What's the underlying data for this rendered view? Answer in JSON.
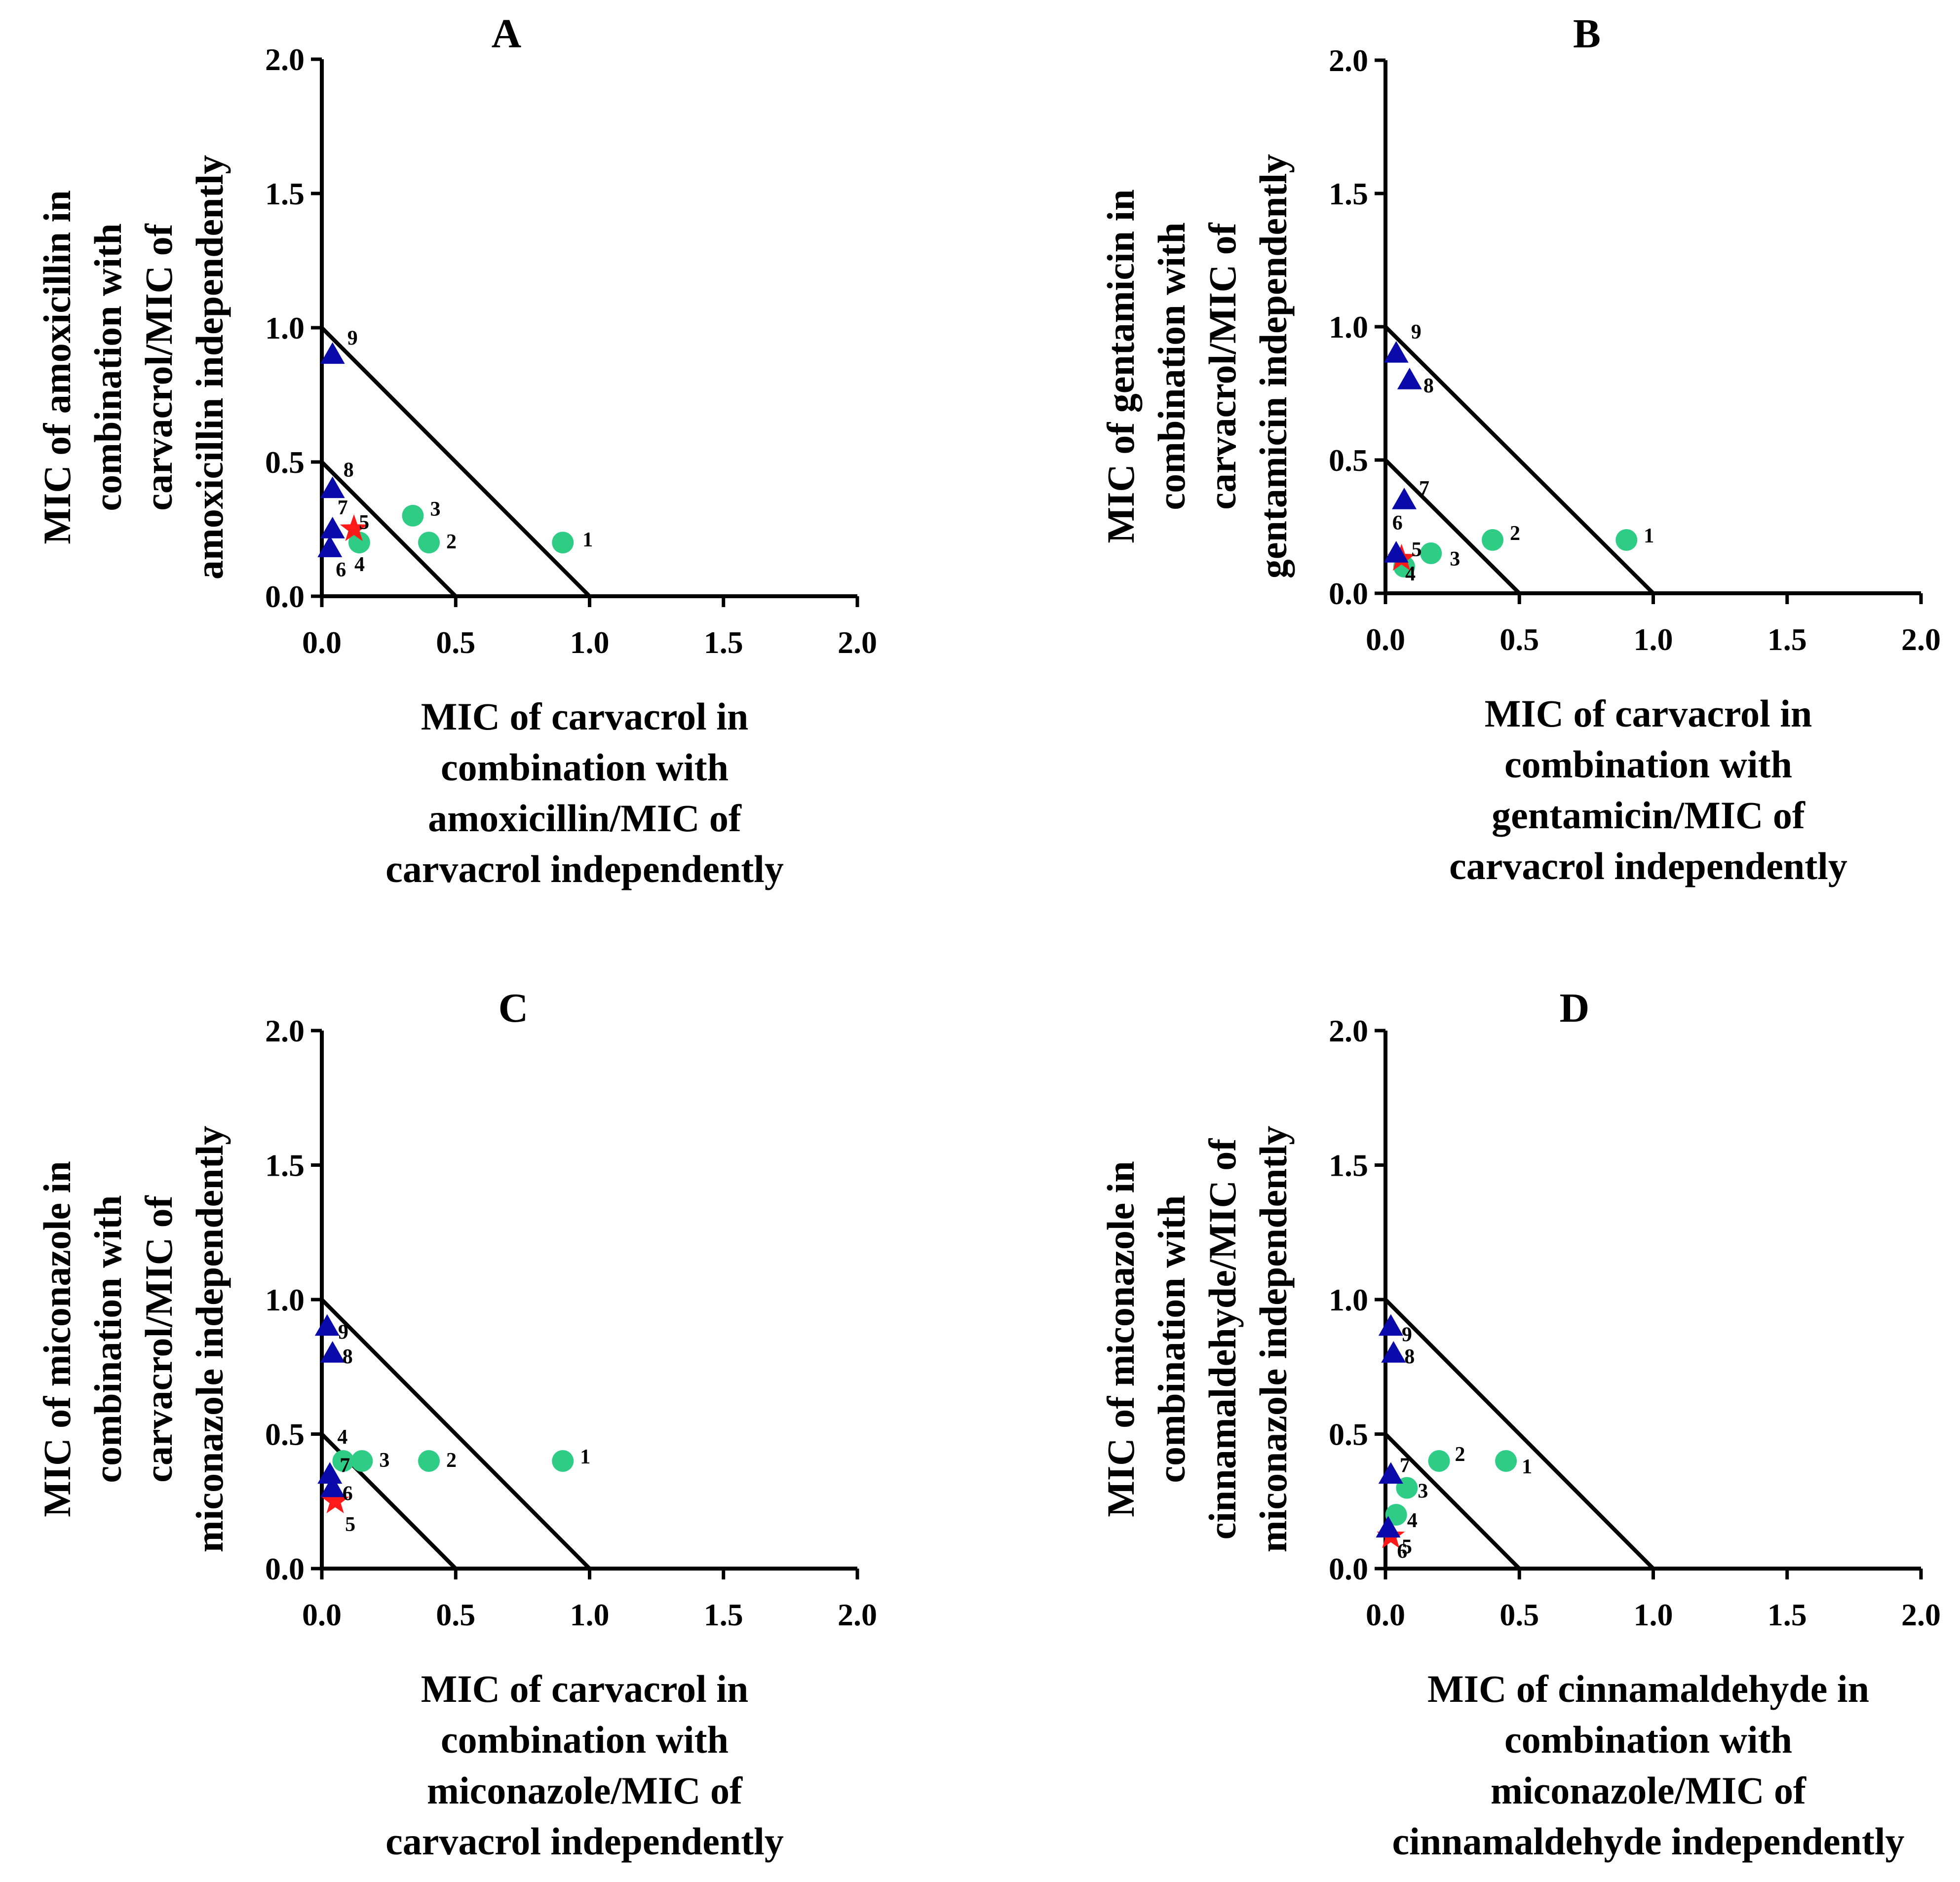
{
  "figure": {
    "colors": {
      "circle": "#2ECC85",
      "triangle": "#0A0AAA",
      "star": "#FF1A1A",
      "axis": "#000000"
    },
    "marker_legend_note": "",
    "panels": []
  },
  "chart_data": [
    {
      "type": "scatter",
      "title": "A",
      "xlabel": [
        "MIC of carvacrol in",
        "combination with",
        "amoxicillin/MIC of",
        "carvacrol independently"
      ],
      "ylabel": [
        "MIC of amoxicillin in",
        "combination with",
        "carvacrol/MIC of",
        "amoxicillin independently"
      ],
      "xlim": [
        0,
        2
      ],
      "ylim": [
        0,
        2
      ],
      "xticks": [
        "0.0",
        "0.5",
        "1.0",
        "1.5",
        "2.0"
      ],
      "yticks": [
        "0.0",
        "0.5",
        "1.0",
        "1.5",
        "2.0"
      ],
      "reference_lines": [
        {
          "from": [
            0,
            0.5
          ],
          "to": [
            0.5,
            0
          ]
        },
        {
          "from": [
            0,
            1
          ],
          "to": [
            1,
            0
          ]
        }
      ],
      "points": [
        {
          "label": "1",
          "x": 0.9,
          "y": 0.2,
          "marker": "circle"
        },
        {
          "label": "2",
          "x": 0.4,
          "y": 0.2,
          "marker": "circle"
        },
        {
          "label": "3",
          "x": 0.34,
          "y": 0.3,
          "marker": "circle"
        },
        {
          "label": "4",
          "x": 0.14,
          "y": 0.2,
          "marker": "circle"
        },
        {
          "label": "5",
          "x": 0.12,
          "y": 0.25,
          "marker": "star"
        },
        {
          "label": "6",
          "x": 0.03,
          "y": 0.18,
          "marker": "triangle"
        },
        {
          "label": "7",
          "x": 0.04,
          "y": 0.25,
          "marker": "triangle"
        },
        {
          "label": "8",
          "x": 0.04,
          "y": 0.4,
          "marker": "triangle"
        },
        {
          "label": "9",
          "x": 0.04,
          "y": 0.9,
          "marker": "triangle"
        }
      ]
    },
    {
      "type": "scatter",
      "title": "B",
      "xlabel": [
        "MIC of carvacrol in",
        "combination with",
        "gentamicin/MIC of",
        "carvacrol independently"
      ],
      "ylabel": [
        "MIC of gentamicin in",
        "combination with",
        "carvacrol/MIC of",
        "gentamicin independently"
      ],
      "xlim": [
        0,
        2
      ],
      "ylim": [
        0,
        2
      ],
      "xticks": [
        "0.0",
        "0.5",
        "1.0",
        "1.5",
        "2.0"
      ],
      "yticks": [
        "0.0",
        "0.5",
        "1.0",
        "1.5",
        "2.0"
      ],
      "reference_lines": [
        {
          "from": [
            0,
            0.5
          ],
          "to": [
            0.5,
            0
          ]
        },
        {
          "from": [
            0,
            1
          ],
          "to": [
            1,
            0
          ]
        }
      ],
      "points": [
        {
          "label": "1",
          "x": 0.9,
          "y": 0.2,
          "marker": "circle"
        },
        {
          "label": "2",
          "x": 0.4,
          "y": 0.2,
          "marker": "circle"
        },
        {
          "label": "3",
          "x": 0.17,
          "y": 0.15,
          "marker": "circle"
        },
        {
          "label": "4",
          "x": 0.07,
          "y": 0.1,
          "marker": "circle"
        },
        {
          "label": "5",
          "x": 0.06,
          "y": 0.13,
          "marker": "star"
        },
        {
          "label": "6",
          "x": 0.04,
          "y": 0.15,
          "marker": "triangle"
        },
        {
          "label": "7",
          "x": 0.07,
          "y": 0.35,
          "marker": "triangle"
        },
        {
          "label": "8",
          "x": 0.09,
          "y": 0.8,
          "marker": "triangle"
        },
        {
          "label": "9",
          "x": 0.04,
          "y": 0.9,
          "marker": "triangle"
        }
      ]
    },
    {
      "type": "scatter",
      "title": "C",
      "xlabel": [
        "MIC of carvacrol in",
        "combination with",
        "miconazole/MIC of",
        "carvacrol independently"
      ],
      "ylabel": [
        "MIC of miconazole in",
        "combination with",
        "carvacrol/MIC of",
        "miconazole independently"
      ],
      "xlim": [
        0,
        2
      ],
      "ylim": [
        0,
        2
      ],
      "xticks": [
        "0.0",
        "0.5",
        "1.0",
        "1.5",
        "2.0"
      ],
      "yticks": [
        "0.0",
        "0.5",
        "1.0",
        "1.5",
        "2.0"
      ],
      "reference_lines": [
        {
          "from": [
            0,
            0.5
          ],
          "to": [
            0.5,
            0
          ]
        },
        {
          "from": [
            0,
            1
          ],
          "to": [
            1,
            0
          ]
        }
      ],
      "points": [
        {
          "label": "1",
          "x": 0.9,
          "y": 0.4,
          "marker": "circle"
        },
        {
          "label": "2",
          "x": 0.4,
          "y": 0.4,
          "marker": "circle"
        },
        {
          "label": "3",
          "x": 0.15,
          "y": 0.4,
          "marker": "circle"
        },
        {
          "label": "4",
          "x": 0.08,
          "y": 0.4,
          "marker": "circle"
        },
        {
          "label": "5",
          "x": 0.05,
          "y": 0.25,
          "marker": "star"
        },
        {
          "label": "6",
          "x": 0.04,
          "y": 0.3,
          "marker": "triangle"
        },
        {
          "label": "7",
          "x": 0.03,
          "y": 0.35,
          "marker": "triangle"
        },
        {
          "label": "8",
          "x": 0.04,
          "y": 0.8,
          "marker": "triangle"
        },
        {
          "label": "9",
          "x": 0.02,
          "y": 0.9,
          "marker": "triangle"
        }
      ]
    },
    {
      "type": "scatter",
      "title": "D",
      "xlabel": [
        "MIC of cinnamaldehyde in",
        "combination with",
        "miconazole/MIC of",
        "cinnamaldehyde independently"
      ],
      "ylabel": [
        "MIC of miconazole in",
        "combination with",
        "cinnamaldehyde/MIC of",
        "miconazole independently"
      ],
      "xlim": [
        0,
        2
      ],
      "ylim": [
        0,
        2
      ],
      "xticks": [
        "0.0",
        "0.5",
        "1.0",
        "1.5",
        "2.0"
      ],
      "yticks": [
        "0.0",
        "0.5",
        "1.0",
        "1.5",
        "2.0"
      ],
      "reference_lines": [
        {
          "from": [
            0,
            0.5
          ],
          "to": [
            0.5,
            0
          ]
        },
        {
          "from": [
            0,
            1
          ],
          "to": [
            1,
            0
          ]
        }
      ],
      "points": [
        {
          "label": "1",
          "x": 0.45,
          "y": 0.4,
          "marker": "circle"
        },
        {
          "label": "2",
          "x": 0.2,
          "y": 0.4,
          "marker": "circle"
        },
        {
          "label": "3",
          "x": 0.08,
          "y": 0.3,
          "marker": "circle"
        },
        {
          "label": "4",
          "x": 0.04,
          "y": 0.2,
          "marker": "circle"
        },
        {
          "label": "5",
          "x": 0.02,
          "y": 0.12,
          "marker": "star"
        },
        {
          "label": "6",
          "x": 0.01,
          "y": 0.15,
          "marker": "triangle"
        },
        {
          "label": "7",
          "x": 0.02,
          "y": 0.35,
          "marker": "triangle"
        },
        {
          "label": "8",
          "x": 0.03,
          "y": 0.8,
          "marker": "triangle"
        },
        {
          "label": "9",
          "x": 0.02,
          "y": 0.9,
          "marker": "triangle"
        }
      ]
    }
  ]
}
